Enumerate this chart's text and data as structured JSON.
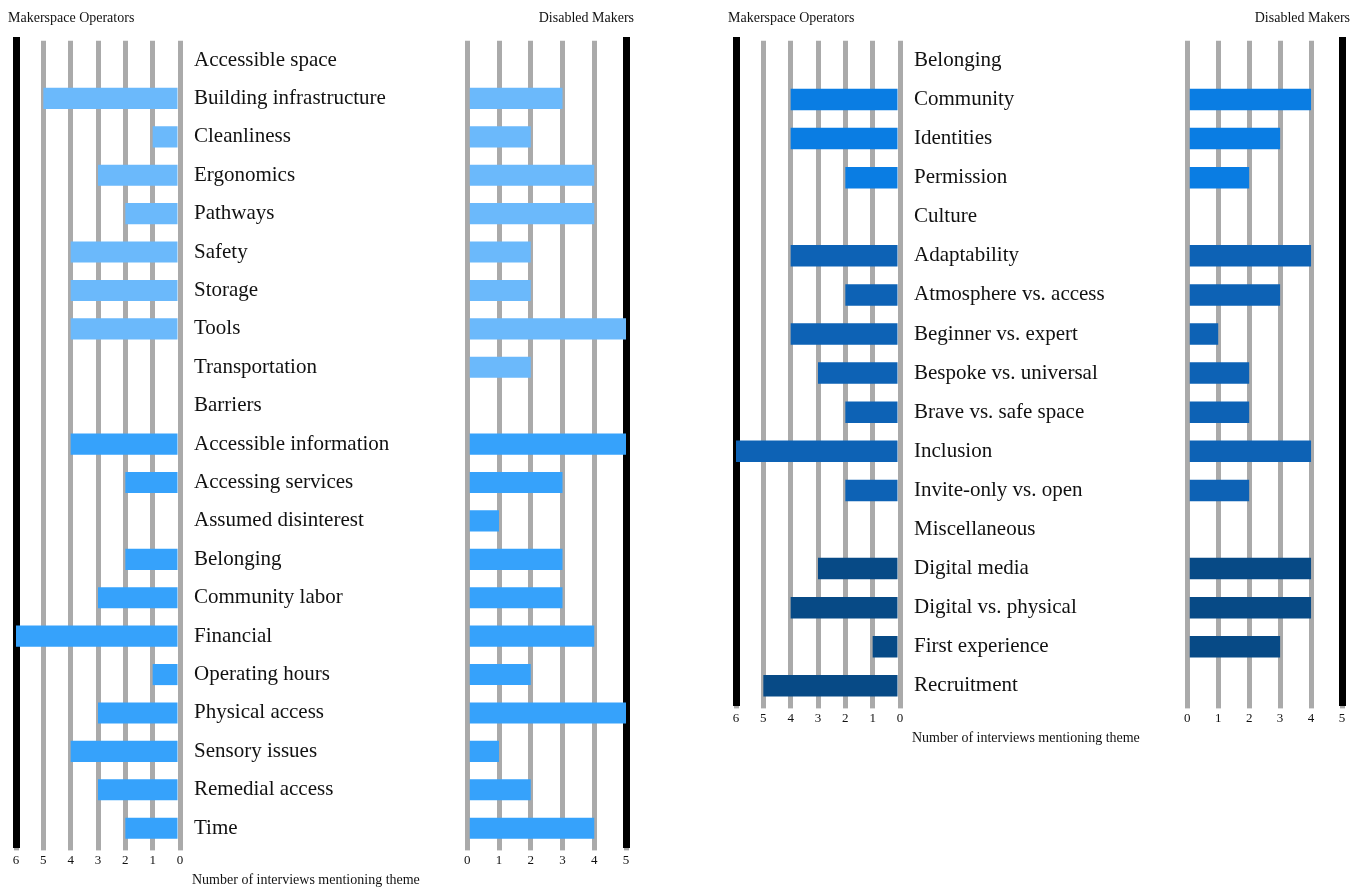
{
  "chart_data": [
    {
      "type": "bar",
      "orientation": "horizontal",
      "title": "Makerspace Operators",
      "xlabel": "Number of interviews mentioning theme",
      "categories": [
        "Accessible space",
        "Building infrastructure",
        "Cleanliness",
        "Ergonomics",
        "Pathways",
        "Safety",
        "Storage",
        "Tools",
        "Transportation",
        "Barriers",
        "Accessible information",
        "Accessing services",
        "Assumed disinterest",
        "Belonging",
        "Community labor",
        "Financial",
        "Operating hours",
        "Physical access",
        "Sensory issues",
        "Remedial access",
        "Time"
      ],
      "values": [
        null,
        5,
        1,
        3,
        2,
        4,
        4,
        4,
        0,
        null,
        4,
        2,
        0,
        2,
        3,
        6,
        1,
        3,
        4,
        3,
        2
      ],
      "colors": [
        null,
        "#6bb9fb",
        "#6bb9fb",
        "#6bb9fb",
        "#6bb9fb",
        "#6bb9fb",
        "#6bb9fb",
        "#6bb9fb",
        "#6bb9fb",
        null,
        "#36a2fb",
        "#36a2fb",
        "#36a2fb",
        "#36a2fb",
        "#36a2fb",
        "#36a2fb",
        "#36a2fb",
        "#36a2fb",
        "#36a2fb",
        "#36a2fb",
        "#36a2fb"
      ],
      "xlim": [
        6,
        0
      ],
      "xticks": [
        6,
        5,
        4,
        3,
        2,
        1,
        0
      ],
      "grid": "x"
    },
    {
      "type": "bar",
      "orientation": "horizontal",
      "title": "Disabled Makers",
      "tick_labels": "x",
      "categories": [
        null,
        null,
        null,
        null,
        null,
        null,
        null,
        null,
        null,
        null,
        null,
        null,
        null,
        null,
        null,
        null,
        null,
        null,
        null,
        null,
        null
      ],
      "values": [
        null,
        3,
        2,
        4,
        4,
        2,
        2,
        5,
        2,
        null,
        5,
        3,
        1,
        3,
        3,
        4,
        2,
        5,
        1,
        2,
        4
      ],
      "colors": [
        null,
        "#6bb9fb",
        "#6bb9fb",
        "#6bb9fb",
        "#6bb9fb",
        "#6bb9fb",
        "#6bb9fb",
        "#6bb9fb",
        "#6bb9fb",
        null,
        "#36a2fb",
        "#36a2fb",
        "#36a2fb",
        "#36a2fb",
        "#36a2fb",
        "#36a2fb",
        "#36a2fb",
        "#36a2fb",
        "#36a2fb",
        "#36a2fb",
        "#36a2fb"
      ],
      "xlim": [
        0,
        5
      ],
      "xticks": [
        0,
        1,
        2,
        3,
        4,
        5
      ],
      "grid": "x"
    },
    {
      "type": "bar",
      "orientation": "horizontal",
      "title": "Makerspace Operators",
      "xlabel": "Number of interviews mentioning theme",
      "categories": [
        "Belonging",
        "Community",
        "Identities",
        "Permission",
        "Culture",
        "Adaptability",
        "Atmosphere vs. access",
        "Beginner vs. expert",
        "Bespoke vs. universal",
        "Brave vs. safe space",
        "Inclusion",
        "Invite-only vs. open",
        "Miscellaneous",
        "Digital media",
        "Digital vs. physical",
        "First experience",
        "Recruitment"
      ],
      "values": [
        null,
        4,
        4,
        2,
        null,
        4,
        2,
        4,
        3,
        2,
        6,
        2,
        null,
        3,
        4,
        1,
        5
      ],
      "colors": [
        null,
        "#0a7de3",
        "#0a7de3",
        "#0a7de3",
        null,
        "#0d62b5",
        "#0d62b5",
        "#0d62b5",
        "#0d62b5",
        "#0d62b5",
        "#0d62b5",
        "#0d62b5",
        null,
        "#074a86",
        "#074a86",
        "#074a86",
        "#074a86"
      ],
      "xlim": [
        6,
        0
      ],
      "xticks": [
        6,
        5,
        4,
        3,
        2,
        1,
        0
      ],
      "grid": "x"
    },
    {
      "type": "bar",
      "orientation": "horizontal",
      "title": "Disabled Makers",
      "tick_labels": "x",
      "categories": [
        null,
        null,
        null,
        null,
        null,
        null,
        null,
        null,
        null,
        null,
        null,
        null,
        null,
        null,
        null,
        null,
        null
      ],
      "values": [
        null,
        4,
        3,
        2,
        null,
        4,
        3,
        1,
        2,
        2,
        4,
        2,
        null,
        4,
        4,
        3,
        0
      ],
      "colors": [
        null,
        "#0a7de3",
        "#0a7de3",
        "#0a7de3",
        null,
        "#0d62b5",
        "#0d62b5",
        "#0d62b5",
        "#0d62b5",
        "#0d62b5",
        "#0d62b5",
        "#0d62b5",
        null,
        "#074a86",
        "#074a86",
        "#074a86",
        "#074a86"
      ],
      "xlim": [
        0,
        5
      ],
      "xticks": [
        0,
        1,
        2,
        3,
        4,
        5
      ],
      "grid": "x"
    }
  ]
}
